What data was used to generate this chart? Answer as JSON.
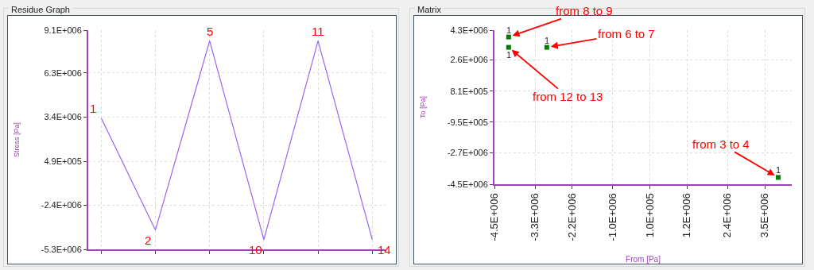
{
  "chart_data": [
    {
      "type": "line",
      "title": "Residue Graph",
      "ylabel": "Stress [Pa]",
      "categories": [
        null,
        null,
        null,
        null,
        null,
        null
      ],
      "series": [
        {
          "color": "#9966ee",
          "values": [
            3320000,
            -4030000,
            8400000,
            -4660000,
            8400000,
            -4660000
          ]
        }
      ],
      "ylim": [
        -5300000,
        9100000
      ],
      "yticks": [
        {
          "value": -5300000,
          "label": "-5.3E+006"
        },
        {
          "value": -2400000,
          "label": "-2.4E+006"
        },
        {
          "value": 490000,
          "label": "4.9E+005"
        },
        {
          "value": 3400000,
          "label": "3.4E+006"
        },
        {
          "value": 6300000,
          "label": "6.3E+006"
        },
        {
          "value": 9100000,
          "label": "9.1E+006"
        }
      ],
      "grid": true,
      "marker": "none",
      "tick_labels": "y",
      "annotations": [
        "1",
        "2",
        "5",
        "10",
        "11",
        "14"
      ]
    },
    {
      "type": "scatter",
      "title": "Matrix",
      "xlabel": "From [Pa]",
      "ylabel": "To [Pa]",
      "series": [
        {
          "color": "#008000",
          "x": [
            -4080000,
            -4080000,
            -2950000,
            3900000
          ],
          "values": [
            3910000,
            3320000,
            3320000,
            -4110000
          ]
        }
      ],
      "xlim": [
        -4500000,
        4300000
      ],
      "xticks": [
        {
          "value": -4500000,
          "label": "-4.5E+006"
        },
        {
          "value": -3300000,
          "label": "-3.3E+006"
        },
        {
          "value": -2200000,
          "label": "-2.2E+006"
        },
        {
          "value": -1000000,
          "label": "-1.0E+006"
        },
        {
          "value": 100000,
          "label": "1.0E+005"
        },
        {
          "value": 1200000,
          "label": "1.2E+006"
        },
        {
          "value": 2400000,
          "label": "2.4E+006"
        },
        {
          "value": 3500000,
          "label": "3.5E+006"
        }
      ],
      "ylim": [
        -4500000,
        4300000
      ],
      "yticks": [
        {
          "value": -4500000,
          "label": "-4.5E+006"
        },
        {
          "value": -2700000,
          "label": "-2.7E+006"
        },
        {
          "value": -950000,
          "label": "-9.5E+005"
        },
        {
          "value": 810000,
          "label": "8.1E+005"
        },
        {
          "value": 2600000,
          "label": "2.6E+006"
        },
        {
          "value": 4300000,
          "label": "4.3E+006"
        }
      ],
      "grid": true,
      "marker": "square",
      "annotations": [
        {
          "text": "1",
          "x": -4080000,
          "y": 3910000
        },
        {
          "text": "1",
          "x": -4080000,
          "y": 3320000
        },
        {
          "text": "1",
          "x": -2950000,
          "y": 3320000
        },
        {
          "text": "1",
          "x": 3900000,
          "y": -4110000
        },
        {
          "text": "from 8 to 9",
          "x": -4080000,
          "y": 3910000
        },
        {
          "text": "from 6 to 7",
          "x": -2950000,
          "y": 3320000
        },
        {
          "text": "from 12 to 13",
          "x": -4080000,
          "y": 3320000
        },
        {
          "text": "from 3 to 4",
          "x": 3900000,
          "y": -4110000
        }
      ]
    }
  ]
}
